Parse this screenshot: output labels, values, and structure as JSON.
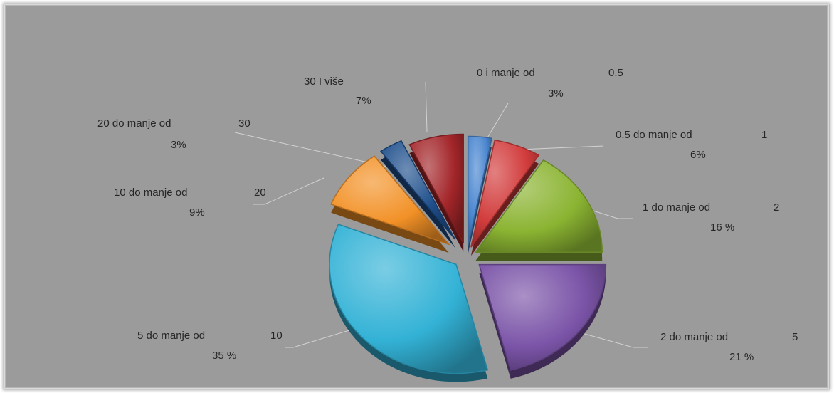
{
  "chart_data": {
    "type": "pie",
    "title": "",
    "slices": [
      {
        "range": "0 i manje od",
        "upper": "0.5",
        "pct_label": "3%",
        "value": 3,
        "color": "#4a86cf"
      },
      {
        "range": "0.5  do manje od",
        "upper": "1",
        "pct_label": "6%",
        "value": 6,
        "color": "#d23c3c"
      },
      {
        "range": "1 do manje od",
        "upper": "2",
        "pct_label": "16 %",
        "value": 16,
        "color": "#8bb432"
      },
      {
        "range": "2 do manje od",
        "upper": "5",
        "pct_label": "21 %",
        "value": 21,
        "color": "#7b54a8"
      },
      {
        "range": "5  do manje od",
        "upper": "10",
        "pct_label": "35 %",
        "value": 35,
        "color": "#33b2d6"
      },
      {
        "range": "10  do manje od",
        "upper": "20",
        "pct_label": "9%",
        "value": 9,
        "color": "#f29127"
      },
      {
        "range": "20  do manje od",
        "upper": "30",
        "pct_label": "3%",
        "value": 3,
        "color": "#1f4f8c"
      },
      {
        "range": "30  I više",
        "upper": "",
        "pct_label": "7%",
        "value": 7,
        "color": "#a3262a"
      }
    ]
  }
}
